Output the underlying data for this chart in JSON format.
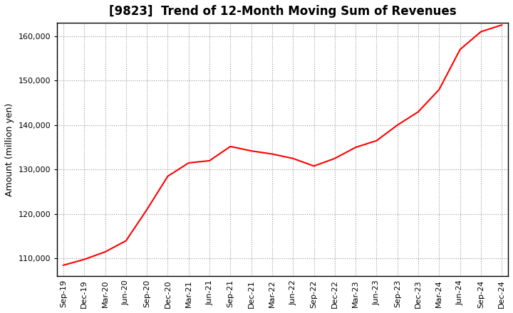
{
  "title": "[9823]  Trend of 12-Month Moving Sum of Revenues",
  "ylabel": "Amount (million yen)",
  "line_color": "#FF0000",
  "background_color": "#FFFFFF",
  "plot_bg_color": "#FFFFFF",
  "grid_color": "#999999",
  "x_labels": [
    "Sep-19",
    "Dec-19",
    "Mar-20",
    "Jun-20",
    "Sep-20",
    "Dec-20",
    "Mar-21",
    "Jun-21",
    "Sep-21",
    "Dec-21",
    "Mar-22",
    "Jun-22",
    "Sep-22",
    "Dec-22",
    "Mar-23",
    "Jun-23",
    "Sep-23",
    "Dec-23",
    "Mar-24",
    "Jun-24",
    "Sep-24",
    "Dec-24"
  ],
  "values": [
    108500,
    109800,
    111500,
    114000,
    121000,
    128500,
    131500,
    132000,
    135200,
    134200,
    133500,
    132500,
    130800,
    132500,
    135000,
    136500,
    140000,
    143000,
    148000,
    157000,
    161000,
    162500
  ],
  "ylim": [
    106000,
    163000
  ],
  "yticks": [
    110000,
    120000,
    130000,
    140000,
    150000,
    160000
  ],
  "title_fontsize": 12,
  "label_fontsize": 9,
  "tick_fontsize": 8
}
